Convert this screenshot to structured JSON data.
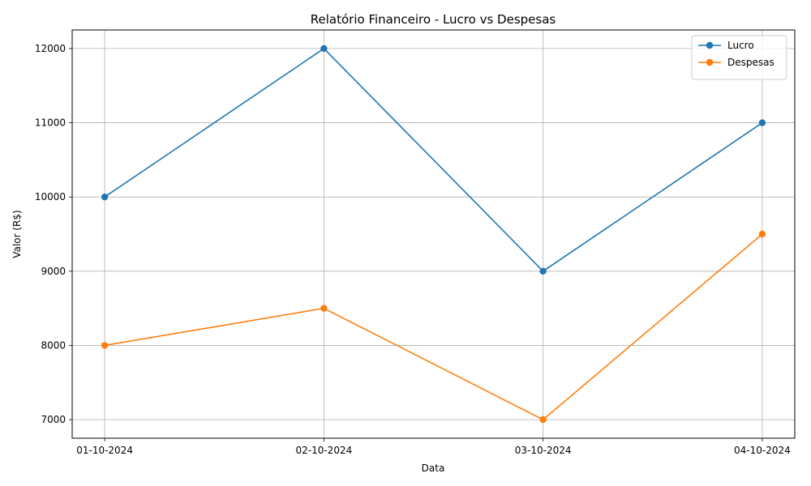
{
  "chart_data": {
    "type": "line",
    "title": "Relatório Financeiro - Lucro vs Despesas",
    "xlabel": "Data",
    "ylabel": "Valor (R$)",
    "categories": [
      "01-10-2024",
      "02-10-2024",
      "03-10-2024",
      "04-10-2024"
    ],
    "yticks": [
      7000,
      8000,
      9000,
      10000,
      11000,
      12000
    ],
    "ylim": [
      6750,
      12250
    ],
    "grid": true,
    "legend_position": "top-right",
    "series": [
      {
        "name": "Lucro",
        "color": "#1f77b4",
        "values": [
          10000,
          12000,
          9000,
          11000
        ]
      },
      {
        "name": "Despesas",
        "color": "#ff7f0e",
        "values": [
          8000,
          8500,
          7000,
          9500
        ]
      }
    ]
  }
}
